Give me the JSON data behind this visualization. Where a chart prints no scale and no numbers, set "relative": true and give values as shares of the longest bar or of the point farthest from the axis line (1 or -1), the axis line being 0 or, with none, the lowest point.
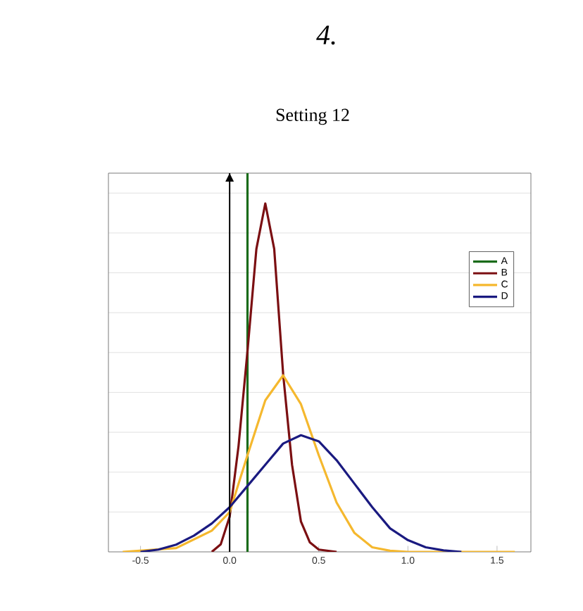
{
  "chart_data": {
    "type": "line",
    "title": "Setting 12",
    "annotations": [
      "4."
    ],
    "relative": true,
    "grid": "y",
    "legend": "right",
    "xlim": [
      -0.68,
      1.69
    ],
    "xticks": [
      {
        "value": -0.5,
        "label": "-0.5"
      },
      {
        "value": 0,
        "label": "0.0"
      },
      {
        "value": 0.5,
        "label": "0.5"
      },
      {
        "value": 1,
        "label": "1.0"
      },
      {
        "value": 1.5,
        "label": "1.5"
      }
    ],
    "ref_lines": [
      {
        "axis": "x",
        "value": 0,
        "color": "#000000"
      }
    ],
    "series": [
      {
        "name": "A",
        "color": "#1a6b1a",
        "x": [
          0.1,
          0.1
        ],
        "values": [
          0,
          1
        ]
      },
      {
        "name": "B",
        "color": "#7b0f12",
        "x": [
          -0.1,
          -0.05,
          0,
          0.05,
          0.1,
          0.15,
          0.2,
          0.25,
          0.3,
          0.35,
          0.4,
          0.45,
          0.5,
          0.6
        ],
        "values": [
          0,
          0.02,
          0.093,
          0.28,
          0.53,
          0.8,
          0.92,
          0.8,
          0.47,
          0.23,
          0.08,
          0.025,
          0.006,
          0
        ]
      },
      {
        "name": "C",
        "color": "#f5b82e",
        "x": [
          -0.6,
          -0.3,
          -0.1,
          0,
          0.1,
          0.2,
          0.3,
          0.4,
          0.5,
          0.6,
          0.7,
          0.8,
          0.9,
          1.0,
          1.6
        ],
        "values": [
          0,
          0.01,
          0.056,
          0.105,
          0.255,
          0.4,
          0.466,
          0.39,
          0.255,
          0.13,
          0.05,
          0.012,
          0.003,
          0,
          0
        ]
      },
      {
        "name": "D",
        "color": "#1a1a80",
        "x": [
          -0.5,
          -0.4,
          -0.3,
          -0.2,
          -0.1,
          0,
          0.1,
          0.2,
          0.3,
          0.4,
          0.5,
          0.6,
          0.7,
          0.8,
          0.9,
          1.0,
          1.1,
          1.2,
          1.3
        ],
        "values": [
          0,
          0.006,
          0.019,
          0.043,
          0.075,
          0.118,
          0.174,
          0.23,
          0.286,
          0.308,
          0.292,
          0.242,
          0.18,
          0.118,
          0.062,
          0.031,
          0.012,
          0.004,
          0
        ]
      }
    ]
  }
}
